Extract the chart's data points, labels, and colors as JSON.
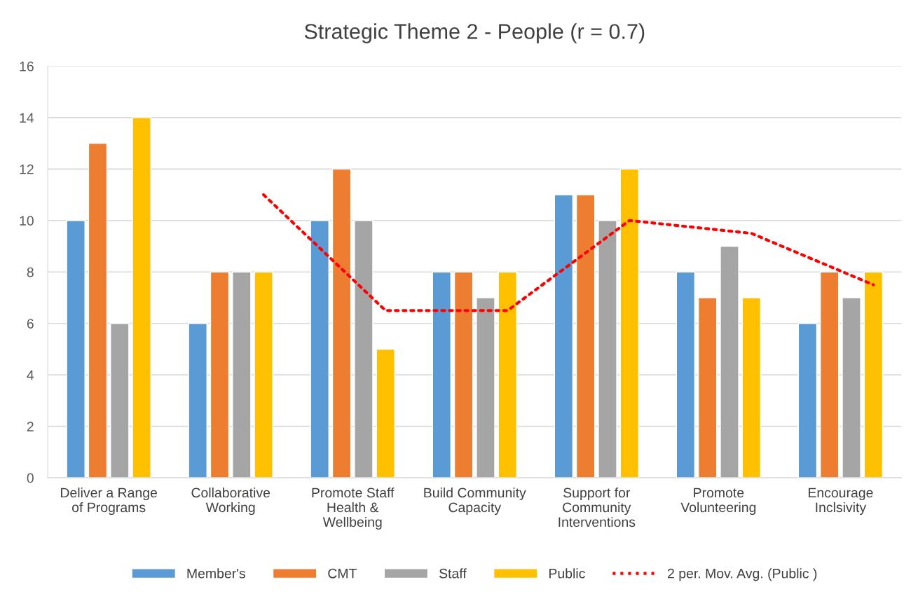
{
  "chart_data": {
    "type": "bar",
    "title": "Strategic Theme 2 - People (r = 0.7)",
    "categories": [
      "Deliver a Range\nof Programs",
      "Collaborative\nWorking",
      "Promote Staff\nHealth &\nWellbeing",
      "Build Community\nCapacity",
      "Support for\nCommunity\nInterventions",
      "Promote\nVolunteering",
      "Encourage\nInclsivity"
    ],
    "series": [
      {
        "name": "Member's",
        "color": "#5b9bd5",
        "values": [
          10,
          6,
          10,
          8,
          11,
          8,
          6
        ]
      },
      {
        "name": "CMT",
        "color": "#ed7d31",
        "values": [
          13,
          8,
          12,
          8,
          11,
          7,
          8
        ]
      },
      {
        "name": "Staff",
        "color": "#a5a5a5",
        "values": [
          6,
          8,
          10,
          7,
          10,
          9,
          7
        ]
      },
      {
        "name": "Public",
        "color": "#ffc000",
        "values": [
          14,
          8,
          5,
          8,
          12,
          7,
          8
        ]
      },
      {
        "name": "2 per. Mov. Avg. (Public )",
        "type": "line",
        "line_style": "dotted",
        "color": "#ff0000",
        "values": [
          null,
          11,
          6.5,
          6.5,
          10,
          9.5,
          7.5
        ]
      }
    ],
    "ylim": [
      0,
      16
    ],
    "yticks": [
      0,
      2,
      4,
      6,
      8,
      10,
      12,
      14,
      16
    ],
    "grid": "y",
    "legend": "bottom"
  }
}
